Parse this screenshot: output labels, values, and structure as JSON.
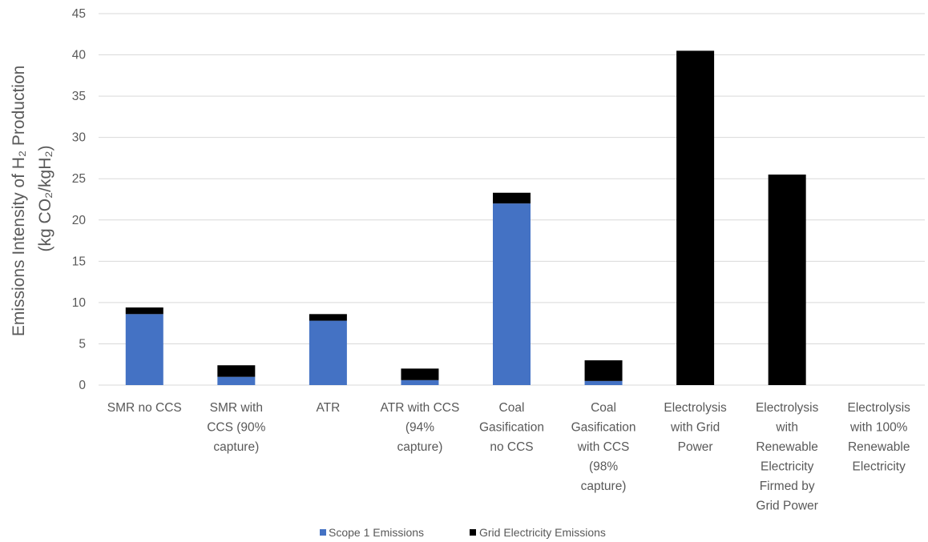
{
  "chart_data": {
    "type": "bar",
    "stacked": true,
    "ylabel_line1": "Emissions Intensity of H₂ Production",
    "ylabel_line2": "(kg CO₂/kgH₂)",
    "ylim": [
      0,
      45
    ],
    "yticks": [
      0,
      5,
      10,
      15,
      20,
      25,
      30,
      35,
      40,
      45
    ],
    "grid": true,
    "legend_position": "bottom",
    "categories": [
      [
        "SMR no CCS"
      ],
      [
        "SMR with",
        "CCS (90%",
        "capture)"
      ],
      [
        "ATR"
      ],
      [
        "ATR with CCS",
        "(94%",
        "capture)"
      ],
      [
        "Coal",
        "Gasification",
        "no CCS"
      ],
      [
        "Coal",
        "Gasification",
        "with CCS",
        "(98%",
        "capture)"
      ],
      [
        "Electrolysis",
        "with Grid",
        "Power"
      ],
      [
        "Electrolysis",
        "with",
        "Renewable",
        "Electricity",
        "Firmed by",
        "Grid Power"
      ],
      [
        "Electrolysis",
        "with 100%",
        "Renewable",
        "Electricity"
      ]
    ],
    "series": [
      {
        "name": "Scope 1 Emissions",
        "color": "#4472c4",
        "values": [
          8.6,
          1.0,
          7.8,
          0.6,
          22.0,
          0.5,
          0,
          0,
          0
        ]
      },
      {
        "name": "Grid Electricity Emissions",
        "color": "#000000",
        "values": [
          0.8,
          1.4,
          0.8,
          1.4,
          1.3,
          2.5,
          40.5,
          25.5,
          0
        ]
      }
    ]
  }
}
